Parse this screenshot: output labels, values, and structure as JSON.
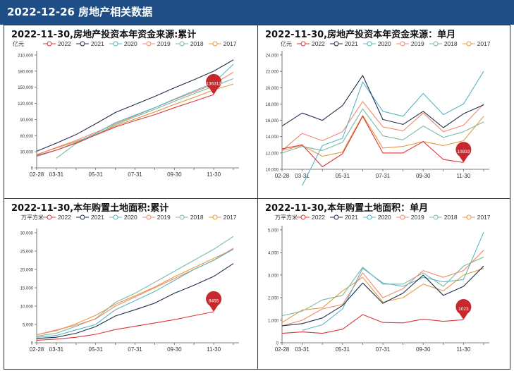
{
  "header": {
    "title": "2022-12-26 房地产相关数据"
  },
  "colors": {
    "2022": "#d9383a",
    "2021": "#1e2f4e",
    "2020": "#5bb4c4",
    "2019": "#f08a6c",
    "2018": "#78baa6",
    "2017": "#e89a3c"
  },
  "chart_data": [
    {
      "type": "line",
      "title": "2022-11-30,房地产投资本年资金来源:累计",
      "ylabel": "亿元",
      "x": [
        "02-28",
        "03-31",
        "04-30",
        "05-31",
        "06-30",
        "07-31",
        "08-31",
        "09-30",
        "10-31",
        "11-30",
        "12-31"
      ],
      "xticks": [
        "02-28",
        "03-31",
        "05-31",
        "07-31",
        "09-30",
        "11-30"
      ],
      "ylim": [
        0,
        210000
      ],
      "yticks": [
        0,
        30000,
        60000,
        90000,
        120000,
        150000,
        180000,
        210000
      ],
      "ytick_labels": [
        "0",
        "30,000",
        "60,000",
        "90,000",
        "120,000",
        "150,000",
        "180,000",
        "210,000"
      ],
      "annotation": {
        "series": "2022",
        "x": "11-30",
        "label": "136313"
      },
      "series": [
        {
          "name": "2022",
          "values": [
            23000,
            33000,
            46000,
            61000,
            76000,
            88000,
            99000,
            112000,
            124000,
            136313,
            null
          ]
        },
        {
          "name": "2021",
          "values": [
            31000,
            46000,
            62000,
            82000,
            103000,
            118000,
            133000,
            149000,
            164000,
            180000,
            201000
          ]
        },
        {
          "name": "2020",
          "values": [
            21000,
            33000,
            47000,
            64000,
            84000,
            98000,
            112000,
            128000,
            143000,
            158000,
            193000
          ]
        },
        {
          "name": "2019",
          "values": [
            24000,
            38000,
            51000,
            66000,
            82000,
            97000,
            112000,
            127000,
            141000,
            156000,
            178000
          ]
        },
        {
          "name": "2018",
          "values": [
            null,
            18000,
            45000,
            62000,
            80000,
            95000,
            109000,
            124000,
            138000,
            152000,
            166000
          ]
        },
        {
          "name": "2017",
          "values": [
            25000,
            37000,
            49000,
            62000,
            78000,
            91000,
            104000,
            118000,
            131000,
            145000,
            156000
          ]
        }
      ]
    },
    {
      "type": "line",
      "title": "2022-11-30,房地产投资本年资金来源：单月",
      "ylabel": "亿元",
      "x": [
        "02-28",
        "03-31",
        "04-30",
        "05-31",
        "06-30",
        "07-31",
        "08-31",
        "09-30",
        "10-31",
        "11-30",
        "12-31"
      ],
      "xticks": [
        "02-28",
        "03-31",
        "05-31",
        "07-31",
        "09-30",
        "11-30"
      ],
      "ylim": [
        10000,
        24000
      ],
      "yticks": [
        10000,
        12000,
        14000,
        16000,
        18000,
        20000,
        22000,
        24000
      ],
      "ytick_labels": [
        "10,000",
        "12,000",
        "14,000",
        "16,000",
        "18,000",
        "20,000",
        "22,000",
        "24,000"
      ],
      "annotation": {
        "series": "2022",
        "x": "11-30",
        "label": "10833"
      },
      "series": [
        {
          "name": "2022",
          "values": [
            12500,
            13000,
            10300,
            11900,
            16500,
            12000,
            12000,
            13400,
            11200,
            10833,
            null
          ]
        },
        {
          "name": "2021",
          "values": [
            15300,
            16900,
            16000,
            17800,
            21500,
            16100,
            15500,
            17100,
            15100,
            16800,
            17900
          ]
        },
        {
          "name": "2020",
          "values": [
            null,
            8000,
            12900,
            13800,
            20700,
            17100,
            16500,
            19300,
            16700,
            18000,
            22000
          ]
        },
        {
          "name": "2019",
          "values": [
            12300,
            14400,
            13500,
            14600,
            18300,
            15200,
            14700,
            16900,
            14600,
            15400,
            18000
          ]
        },
        {
          "name": "2018",
          "values": [
            12000,
            12800,
            12300,
            13300,
            17400,
            14100,
            13600,
            15300,
            13900,
            14600,
            15800
          ]
        },
        {
          "name": "2017",
          "values": [
            12300,
            12900,
            11600,
            12100,
            16600,
            12600,
            12800,
            13400,
            12900,
            13500,
            16500
          ]
        }
      ]
    },
    {
      "type": "line",
      "title": "2022-11-30,本年购置土地面积:累计",
      "ylabel": "万平方米",
      "x": [
        "02-28",
        "03-31",
        "04-30",
        "05-31",
        "06-30",
        "07-31",
        "08-31",
        "09-30",
        "10-31",
        "11-30",
        "12-31"
      ],
      "xticks": [
        "02-28",
        "03-31",
        "05-31",
        "07-31",
        "09-30",
        "11-30"
      ],
      "ylim": [
        0,
        30000
      ],
      "yticks": [
        0,
        5000,
        10000,
        15000,
        20000,
        25000,
        30000
      ],
      "ytick_labels": [
        "0",
        "5,000",
        "10,000",
        "15,000",
        "20,000",
        "25,000",
        "30,000"
      ],
      "annotation": {
        "series": "2022",
        "x": "11-30",
        "label": "8455"
      },
      "series": [
        {
          "name": "2022",
          "values": [
            700,
            1000,
            1500,
            2300,
            3600,
            4500,
            5400,
            6300,
            7400,
            8455,
            null
          ]
        },
        {
          "name": "2021",
          "values": [
            1200,
            1500,
            2600,
            4400,
            7300,
            9000,
            10800,
            13500,
            15700,
            18100,
            21600
          ]
        },
        {
          "name": "2020",
          "values": [
            1500,
            2000,
            3500,
            5000,
            9000,
            11500,
            14000,
            17000,
            20000,
            22500,
            25500
          ]
        },
        {
          "name": "2019",
          "values": [
            2200,
            3500,
            4800,
            6500,
            10000,
            12500,
            15000,
            17500,
            20000,
            22500,
            25800
          ]
        },
        {
          "name": "2018",
          "values": [
            1800,
            2600,
            4500,
            6600,
            11000,
            13500,
            16500,
            19500,
            22500,
            25500,
            29000
          ]
        },
        {
          "name": "2017",
          "values": [
            2200,
            3300,
            5200,
            7500,
            10500,
            12800,
            15200,
            18000,
            20500,
            23000,
            25500
          ]
        }
      ]
    },
    {
      "type": "line",
      "title": "2022-11-30,本年购置土地面积：单月",
      "ylabel": "万平方米",
      "x": [
        "02-28",
        "03-31",
        "04-30",
        "05-31",
        "06-30",
        "07-31",
        "08-31",
        "09-30",
        "10-31",
        "11-30",
        "12-31"
      ],
      "xticks": [
        "02-28",
        "03-31",
        "05-31",
        "07-31",
        "09-30",
        "11-30"
      ],
      "ylim": [
        0,
        5000
      ],
      "yticks": [
        0,
        1000,
        2000,
        3000,
        4000,
        5000
      ],
      "ytick_labels": [
        "0",
        "1,000",
        "2,000",
        "3,000",
        "4,000",
        "5,000"
      ],
      "annotation": {
        "series": "2022",
        "x": "11-30",
        "label": "1023"
      },
      "series": [
        {
          "name": "2022",
          "values": [
            420,
            480,
            420,
            600,
            1250,
            900,
            880,
            1050,
            950,
            1023,
            null
          ]
        },
        {
          "name": "2021",
          "values": [
            750,
            850,
            1100,
            1650,
            2650,
            1750,
            2200,
            3000,
            2100,
            2500,
            3400
          ]
        },
        {
          "name": "2020",
          "values": [
            null,
            550,
            800,
            1500,
            3300,
            2650,
            2500,
            2900,
            2700,
            2800,
            4900
          ]
        },
        {
          "name": "2019",
          "values": [
            750,
            1000,
            1500,
            1700,
            3100,
            2000,
            2400,
            3200,
            2900,
            3200,
            4100
          ]
        },
        {
          "name": "2018",
          "values": [
            1200,
            1400,
            1900,
            2100,
            3350,
            2600,
            2600,
            3100,
            2500,
            3400,
            3800
          ]
        },
        {
          "name": "2017",
          "values": [
            900,
            1450,
            1550,
            2300,
            2900,
            1800,
            2000,
            2600,
            2300,
            3000,
            3300
          ]
        }
      ]
    }
  ]
}
